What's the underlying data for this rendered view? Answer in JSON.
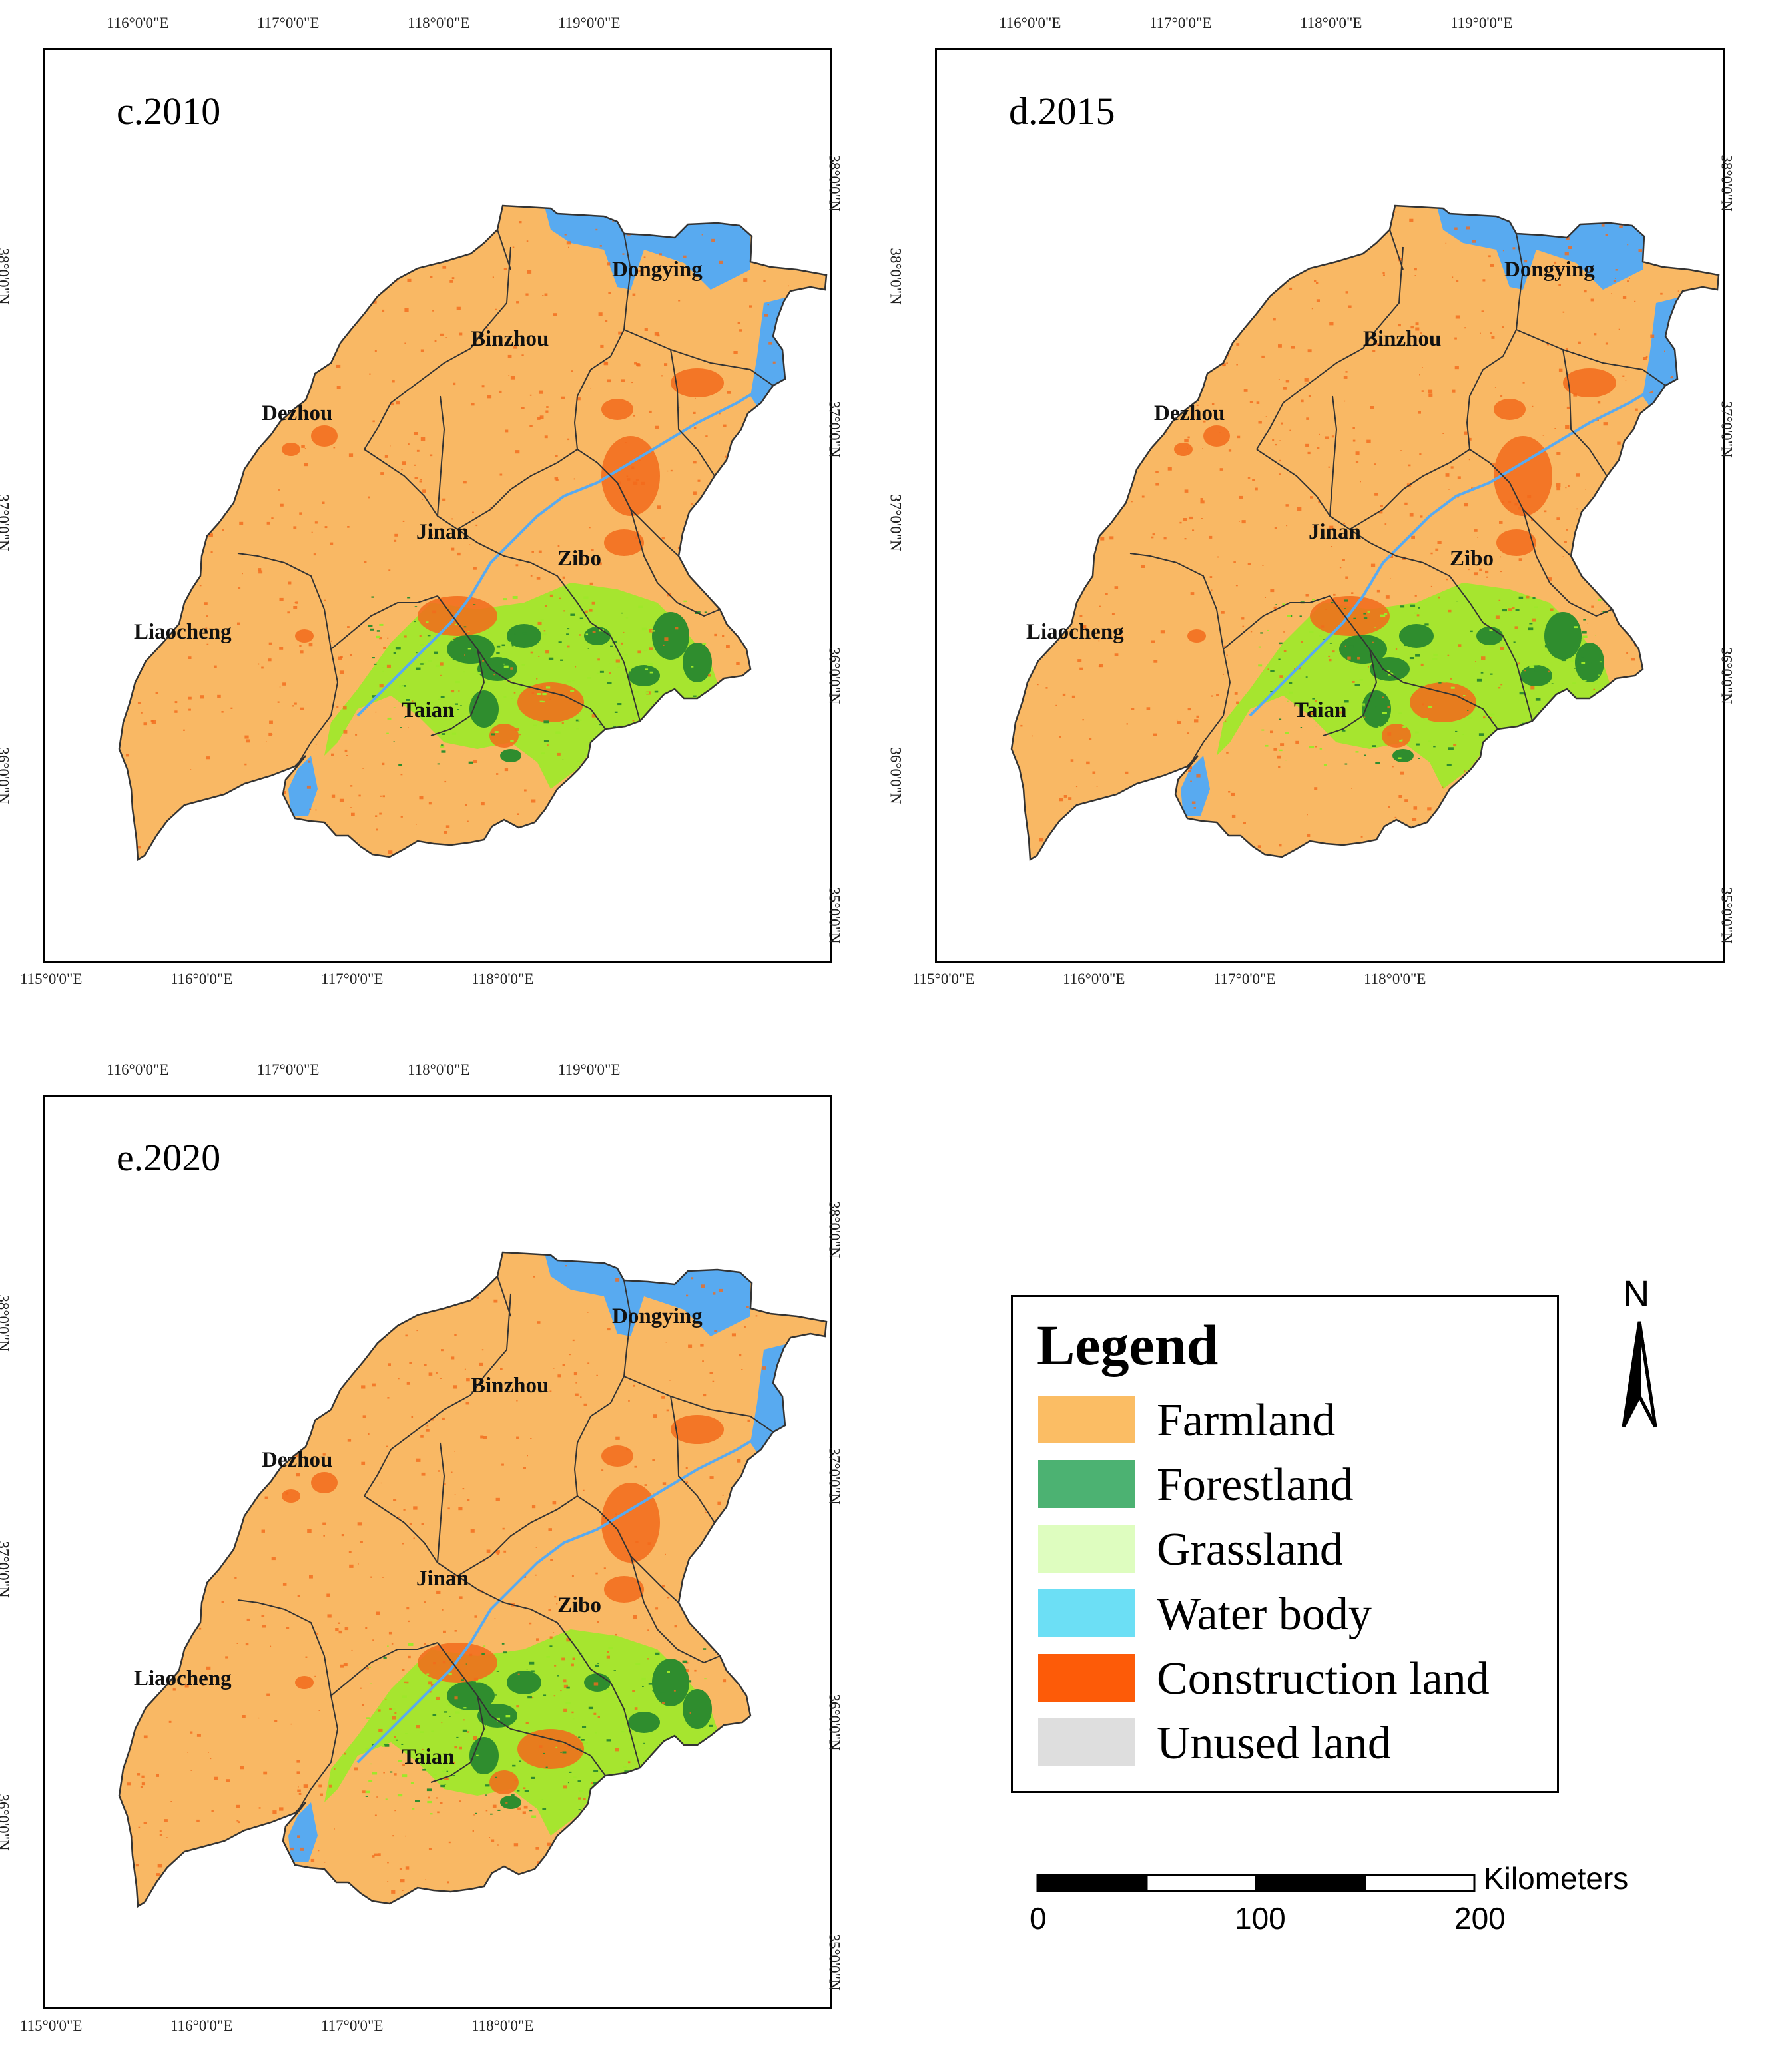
{
  "panels": [
    {
      "title": "c.2010",
      "top_ticks": [
        "116°0'0\"E",
        "117°0'0\"E",
        "118°0'0\"E",
        "119°0'0\"E"
      ],
      "bottom_ticks": [
        "115°0'0\"E",
        "116°0'0\"E",
        "117°0'0\"E",
        "118°0'0\"E"
      ],
      "left_ticks": [
        "38°0'0\"N",
        "37°0'0\"N",
        "37°0'0\"N",
        "36°0'0\"N"
      ],
      "right_ticks": [
        "38°0'0\"N",
        "37°0'0\"N",
        "36°0'0\"N",
        "35°0'0\"N"
      ],
      "cities": [
        "Dongying",
        "Binzhou",
        "Dezhou",
        "Jinan",
        "Zibo",
        "Liaocheng",
        "Taian"
      ]
    },
    {
      "title": "d.2015",
      "top_ticks": [
        "116°0'0\"E",
        "117°0'0\"E",
        "118°0'0\"E",
        "119°0'0\"E"
      ],
      "bottom_ticks": [
        "115°0'0\"E",
        "116°0'0\"E",
        "117°0'0\"E",
        "118°0'0\"E"
      ],
      "left_ticks": [
        "38°0'0\"N",
        "37°0'0\"N",
        "37°0'0\"N",
        "36°0'0\"N"
      ],
      "right_ticks": [
        "38°0'0\"N",
        "37°0'0\"N",
        "36°0'0\"N",
        "35°0'0\"N"
      ],
      "cities": [
        "Dongying",
        "Binzhou",
        "Dezhou",
        "Jinan",
        "Zibo",
        "Liaocheng",
        "Taian"
      ]
    },
    {
      "title": "e.2020",
      "top_ticks": [
        "116°0'0\"E",
        "117°0'0\"E",
        "118°0'0\"E",
        "119°0'0\"E"
      ],
      "bottom_ticks": [
        "115°0'0\"E",
        "116°0'0\"E",
        "117°0'0\"E",
        "118°0'0\"E"
      ],
      "left_ticks": [
        "38°0'0\"N",
        "37°0'0\"N",
        "37°0'0\"N",
        "36°0'0\"N"
      ],
      "right_ticks": [
        "38°0'0\"N",
        "37°0'0\"N",
        "36°0'0\"N",
        "35°0'0\"N"
      ],
      "cities": [
        "Dongying",
        "Binzhou",
        "Dezhou",
        "Jinan",
        "Zibo",
        "Liaocheng",
        "Taian"
      ]
    }
  ],
  "legend": {
    "title": "Legend",
    "items": [
      {
        "label": "Farmland",
        "color": "#fbbd64"
      },
      {
        "label": "Forestland",
        "color": "#4cb272"
      },
      {
        "label": "Grassland",
        "color": "#defdbf"
      },
      {
        "label": "Water body",
        "color": "#6cdff5"
      },
      {
        "label": "Construction land",
        "color": "#fd5b08"
      },
      {
        "label": "Unused land",
        "color": "#dedede"
      }
    ]
  },
  "north_arrow": {
    "label": "N",
    "icon": "north-arrow-icon"
  },
  "scale_bar": {
    "unit": "Kilometers",
    "labels": [
      "0",
      "100",
      "200"
    ]
  },
  "colors": {
    "farmland": "#f9b864",
    "construction": "#f26a1b",
    "water": "#58aaf0",
    "grass": "#9ee82a",
    "forest": "#2f8d2e",
    "boundary": "#333333"
  }
}
